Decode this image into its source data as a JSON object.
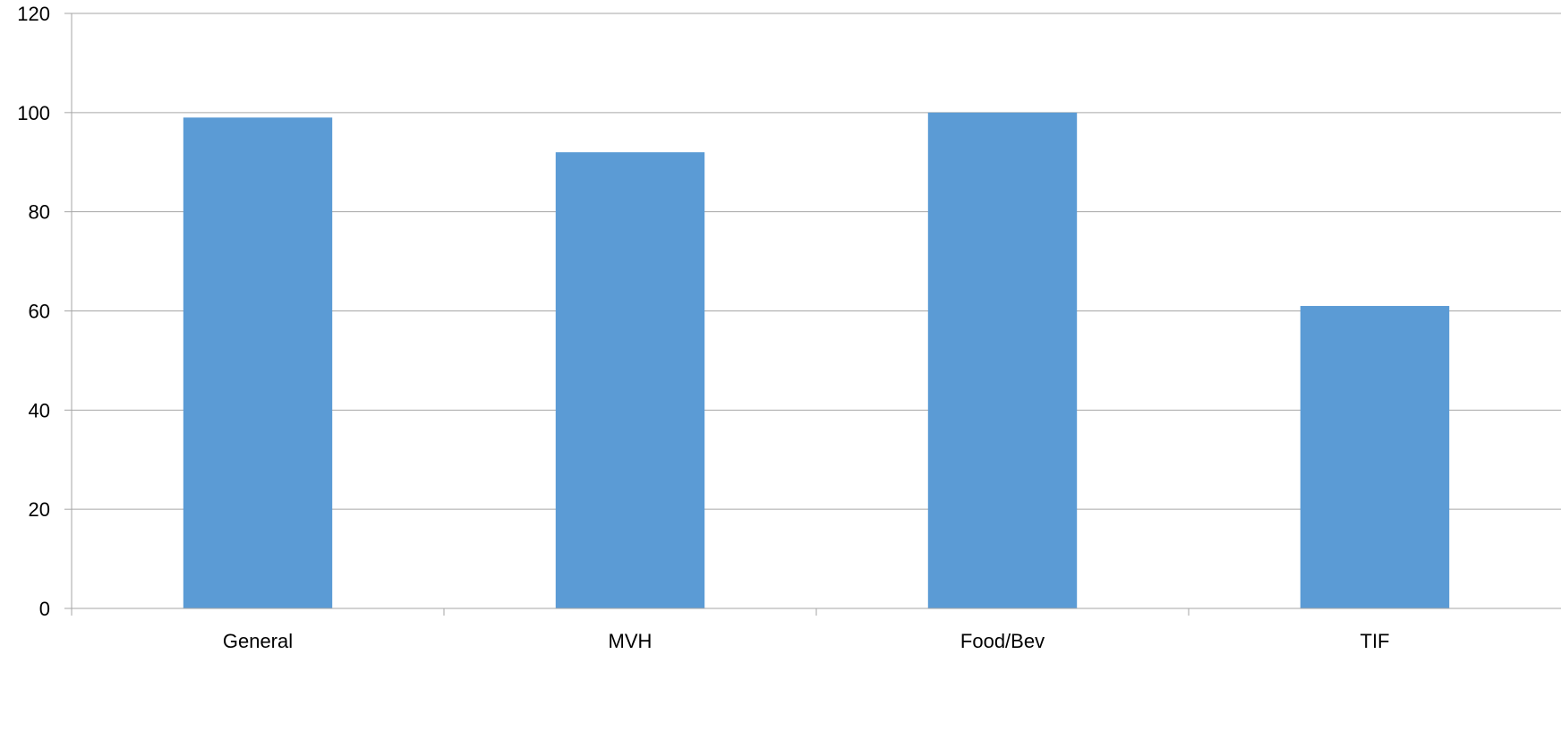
{
  "chart_data": {
    "type": "bar",
    "categories": [
      "General",
      "MVH",
      "Food/Bev",
      "TIF"
    ],
    "values": [
      99,
      92,
      100,
      61
    ],
    "ylim": [
      0,
      120
    ],
    "yticks": [
      0,
      20,
      40,
      60,
      80,
      100,
      120
    ],
    "grid": true,
    "bar_color": "#5b9bd5"
  }
}
